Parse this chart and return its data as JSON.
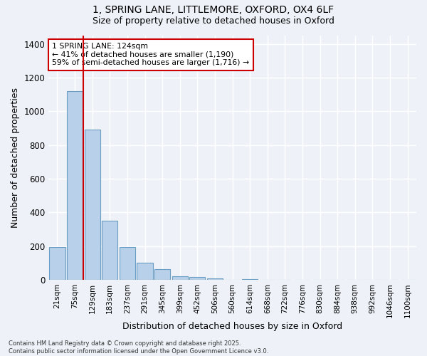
{
  "title_line1": "1, SPRING LANE, LITTLEMORE, OXFORD, OX4 6LF",
  "title_line2": "Size of property relative to detached houses in Oxford",
  "xlabel": "Distribution of detached houses by size in Oxford",
  "ylabel": "Number of detached properties",
  "bar_labels": [
    "21sqm",
    "75sqm",
    "129sqm",
    "183sqm",
    "237sqm",
    "291sqm",
    "345sqm",
    "399sqm",
    "452sqm",
    "506sqm",
    "560sqm",
    "614sqm",
    "668sqm",
    "722sqm",
    "776sqm",
    "830sqm",
    "884sqm",
    "938sqm",
    "992sqm",
    "1046sqm",
    "1100sqm"
  ],
  "bar_values": [
    195,
    1120,
    893,
    352,
    195,
    100,
    62,
    22,
    18,
    10,
    0,
    4,
    0,
    0,
    0,
    0,
    0,
    0,
    0,
    0,
    0
  ],
  "bar_color": "#b8d0ea",
  "bar_edge_color": "#6a9ec5",
  "vline_color": "#cc0000",
  "vline_x": 1.5,
  "annotation_text": "1 SPRING LANE: 124sqm\n← 41% of detached houses are smaller (1,190)\n59% of semi-detached houses are larger (1,716) →",
  "annotation_box_color": "#ffffff",
  "annotation_box_edge": "#cc0000",
  "background_color": "#eef2f8",
  "grid_color": "#ffffff",
  "ylim": [
    0,
    1450
  ],
  "yticks": [
    0,
    200,
    400,
    600,
    800,
    1000,
    1200,
    1400
  ],
  "footnote": "Contains HM Land Registry data © Crown copyright and database right 2025.\nContains public sector information licensed under the Open Government Licence v3.0."
}
